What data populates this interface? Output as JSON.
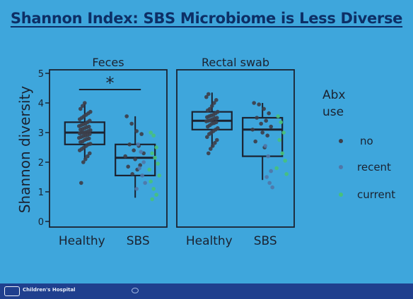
{
  "slide": {
    "title": "Shannon Index: SBS Microbiome is Less Diverse",
    "footer_text": "Children's Hospital"
  },
  "colors": {
    "background": "#3ea6dc",
    "title": "#0d2f66",
    "axis": "#1b2230",
    "no": "#3d3f4a",
    "recent": "#4f77a8",
    "current": "#47c17c",
    "footer": "#1f3f8e"
  },
  "chart_data": {
    "type": "box",
    "ylabel": "Shannon diversity",
    "ylim": [
      0,
      5
    ],
    "yticks": [
      0,
      1,
      2,
      3,
      4,
      5
    ],
    "categories": [
      "Healthy",
      "SBS"
    ],
    "legend": {
      "title_lines": [
        "Abx",
        "use"
      ],
      "entries": [
        "no",
        "recent",
        "current"
      ],
      "placement": "right"
    },
    "panels": [
      {
        "title": "Feces",
        "annotation": "*",
        "groups": [
          {
            "category": "Healthy",
            "box": {
              "whisker_low": 2.1,
              "q1": 2.6,
              "median": 3.0,
              "q3": 3.35,
              "whisker_high": 4.0
            },
            "points": [
              {
                "y": 1.3,
                "g": "no"
              },
              {
                "y": 2.0,
                "g": "no"
              },
              {
                "y": 2.1,
                "g": "no"
              },
              {
                "y": 2.2,
                "g": "no"
              },
              {
                "y": 2.3,
                "g": "no"
              },
              {
                "y": 2.4,
                "g": "no"
              },
              {
                "y": 2.45,
                "g": "no"
              },
              {
                "y": 2.5,
                "g": "no"
              },
              {
                "y": 2.55,
                "g": "no"
              },
              {
                "y": 2.6,
                "g": "no"
              },
              {
                "y": 2.62,
                "g": "no"
              },
              {
                "y": 2.68,
                "g": "no"
              },
              {
                "y": 2.7,
                "g": "no"
              },
              {
                "y": 2.75,
                "g": "no"
              },
              {
                "y": 2.78,
                "g": "no"
              },
              {
                "y": 2.8,
                "g": "no"
              },
              {
                "y": 2.82,
                "g": "no"
              },
              {
                "y": 2.85,
                "g": "no"
              },
              {
                "y": 2.88,
                "g": "no"
              },
              {
                "y": 2.9,
                "g": "no"
              },
              {
                "y": 2.92,
                "g": "no"
              },
              {
                "y": 2.95,
                "g": "no"
              },
              {
                "y": 2.97,
                "g": "no"
              },
              {
                "y": 3.0,
                "g": "no"
              },
              {
                "y": 3.0,
                "g": "no"
              },
              {
                "y": 3.02,
                "g": "no"
              },
              {
                "y": 3.05,
                "g": "no"
              },
              {
                "y": 3.08,
                "g": "no"
              },
              {
                "y": 3.1,
                "g": "no"
              },
              {
                "y": 3.12,
                "g": "no"
              },
              {
                "y": 3.15,
                "g": "no"
              },
              {
                "y": 3.18,
                "g": "no"
              },
              {
                "y": 3.2,
                "g": "no"
              },
              {
                "y": 3.22,
                "g": "no"
              },
              {
                "y": 3.25,
                "g": "no"
              },
              {
                "y": 3.28,
                "g": "no"
              },
              {
                "y": 3.3,
                "g": "no"
              },
              {
                "y": 3.35,
                "g": "no"
              },
              {
                "y": 3.4,
                "g": "no"
              },
              {
                "y": 3.45,
                "g": "no"
              },
              {
                "y": 3.5,
                "g": "no"
              },
              {
                "y": 3.55,
                "g": "no"
              },
              {
                "y": 3.6,
                "g": "no"
              },
              {
                "y": 3.65,
                "g": "no"
              },
              {
                "y": 3.7,
                "g": "no"
              },
              {
                "y": 3.8,
                "g": "no"
              },
              {
                "y": 3.9,
                "g": "no"
              },
              {
                "y": 4.0,
                "g": "no"
              }
            ]
          },
          {
            "category": "SBS",
            "box": {
              "whisker_low": 0.8,
              "q1": 1.55,
              "median": 2.15,
              "q3": 2.6,
              "whisker_high": 3.55
            },
            "points": [
              {
                "y": 3.55,
                "g": "no"
              },
              {
                "y": 3.3,
                "g": "no"
              },
              {
                "y": 3.05,
                "g": "no"
              },
              {
                "y": 2.95,
                "g": "no"
              },
              {
                "y": 2.6,
                "g": "no"
              },
              {
                "y": 2.55,
                "g": "no"
              },
              {
                "y": 2.4,
                "g": "no"
              },
              {
                "y": 2.3,
                "g": "no"
              },
              {
                "y": 2.2,
                "g": "no"
              },
              {
                "y": 2.1,
                "g": "no"
              },
              {
                "y": 1.9,
                "g": "no"
              },
              {
                "y": 1.85,
                "g": "no"
              },
              {
                "y": 1.75,
                "g": "no"
              },
              {
                "y": 1.6,
                "g": "no"
              },
              {
                "y": 2.6,
                "g": "recent"
              },
              {
                "y": 2.35,
                "g": "recent"
              },
              {
                "y": 2.0,
                "g": "recent"
              },
              {
                "y": 1.8,
                "g": "recent"
              },
              {
                "y": 1.55,
                "g": "recent"
              },
              {
                "y": 1.3,
                "g": "recent"
              },
              {
                "y": 1.1,
                "g": "recent"
              },
              {
                "y": 3.0,
                "g": "current"
              },
              {
                "y": 2.9,
                "g": "current"
              },
              {
                "y": 2.5,
                "g": "current"
              },
              {
                "y": 2.3,
                "g": "current"
              },
              {
                "y": 2.15,
                "g": "current"
              },
              {
                "y": 1.95,
                "g": "current"
              },
              {
                "y": 1.75,
                "g": "current"
              },
              {
                "y": 1.55,
                "g": "current"
              },
              {
                "y": 1.35,
                "g": "current"
              },
              {
                "y": 1.1,
                "g": "current"
              },
              {
                "y": 0.9,
                "g": "current"
              },
              {
                "y": 0.75,
                "g": "current"
              }
            ]
          }
        ]
      },
      {
        "title": "Rectal swab",
        "annotation": "",
        "groups": [
          {
            "category": "Healthy",
            "box": {
              "whisker_low": 2.5,
              "q1": 3.1,
              "median": 3.4,
              "q3": 3.7,
              "whisker_high": 4.35
            },
            "points": [
              {
                "y": 2.3,
                "g": "no"
              },
              {
                "y": 2.45,
                "g": "no"
              },
              {
                "y": 2.55,
                "g": "no"
              },
              {
                "y": 2.65,
                "g": "no"
              },
              {
                "y": 2.75,
                "g": "no"
              },
              {
                "y": 2.85,
                "g": "no"
              },
              {
                "y": 2.95,
                "g": "no"
              },
              {
                "y": 3.0,
                "g": "no"
              },
              {
                "y": 3.05,
                "g": "no"
              },
              {
                "y": 3.1,
                "g": "no"
              },
              {
                "y": 3.15,
                "g": "no"
              },
              {
                "y": 3.2,
                "g": "no"
              },
              {
                "y": 3.25,
                "g": "no"
              },
              {
                "y": 3.3,
                "g": "no"
              },
              {
                "y": 3.32,
                "g": "no"
              },
              {
                "y": 3.35,
                "g": "no"
              },
              {
                "y": 3.38,
                "g": "no"
              },
              {
                "y": 3.4,
                "g": "no"
              },
              {
                "y": 3.42,
                "g": "no"
              },
              {
                "y": 3.45,
                "g": "no"
              },
              {
                "y": 3.48,
                "g": "no"
              },
              {
                "y": 3.5,
                "g": "no"
              },
              {
                "y": 3.52,
                "g": "no"
              },
              {
                "y": 3.55,
                "g": "no"
              },
              {
                "y": 3.58,
                "g": "no"
              },
              {
                "y": 3.6,
                "g": "no"
              },
              {
                "y": 3.65,
                "g": "no"
              },
              {
                "y": 3.7,
                "g": "no"
              },
              {
                "y": 3.75,
                "g": "no"
              },
              {
                "y": 3.8,
                "g": "no"
              },
              {
                "y": 3.9,
                "g": "no"
              },
              {
                "y": 4.0,
                "g": "no"
              },
              {
                "y": 4.1,
                "g": "no"
              },
              {
                "y": 4.2,
                "g": "no"
              },
              {
                "y": 4.3,
                "g": "no"
              }
            ]
          },
          {
            "category": "SBS",
            "box": {
              "whisker_low": 1.4,
              "q1": 2.2,
              "median": 3.1,
              "q3": 3.5,
              "whisker_high": 4.0
            },
            "points": [
              {
                "y": 4.0,
                "g": "no"
              },
              {
                "y": 3.95,
                "g": "no"
              },
              {
                "y": 3.8,
                "g": "no"
              },
              {
                "y": 3.65,
                "g": "no"
              },
              {
                "y": 3.5,
                "g": "no"
              },
              {
                "y": 3.4,
                "g": "no"
              },
              {
                "y": 3.3,
                "g": "no"
              },
              {
                "y": 3.2,
                "g": "no"
              },
              {
                "y": 3.1,
                "g": "no"
              },
              {
                "y": 3.0,
                "g": "no"
              },
              {
                "y": 2.9,
                "g": "no"
              },
              {
                "y": 2.7,
                "g": "no"
              },
              {
                "y": 2.5,
                "g": "no"
              },
              {
                "y": 2.55,
                "g": "recent"
              },
              {
                "y": 2.2,
                "g": "recent"
              },
              {
                "y": 1.7,
                "g": "recent"
              },
              {
                "y": 1.5,
                "g": "recent"
              },
              {
                "y": 1.3,
                "g": "recent"
              },
              {
                "y": 1.15,
                "g": "recent"
              },
              {
                "y": 3.55,
                "g": "current"
              },
              {
                "y": 3.35,
                "g": "current"
              },
              {
                "y": 3.0,
                "g": "current"
              },
              {
                "y": 2.75,
                "g": "current"
              },
              {
                "y": 2.3,
                "g": "current"
              },
              {
                "y": 2.05,
                "g": "current"
              },
              {
                "y": 1.8,
                "g": "current"
              },
              {
                "y": 1.6,
                "g": "current"
              }
            ]
          }
        ]
      }
    ]
  }
}
